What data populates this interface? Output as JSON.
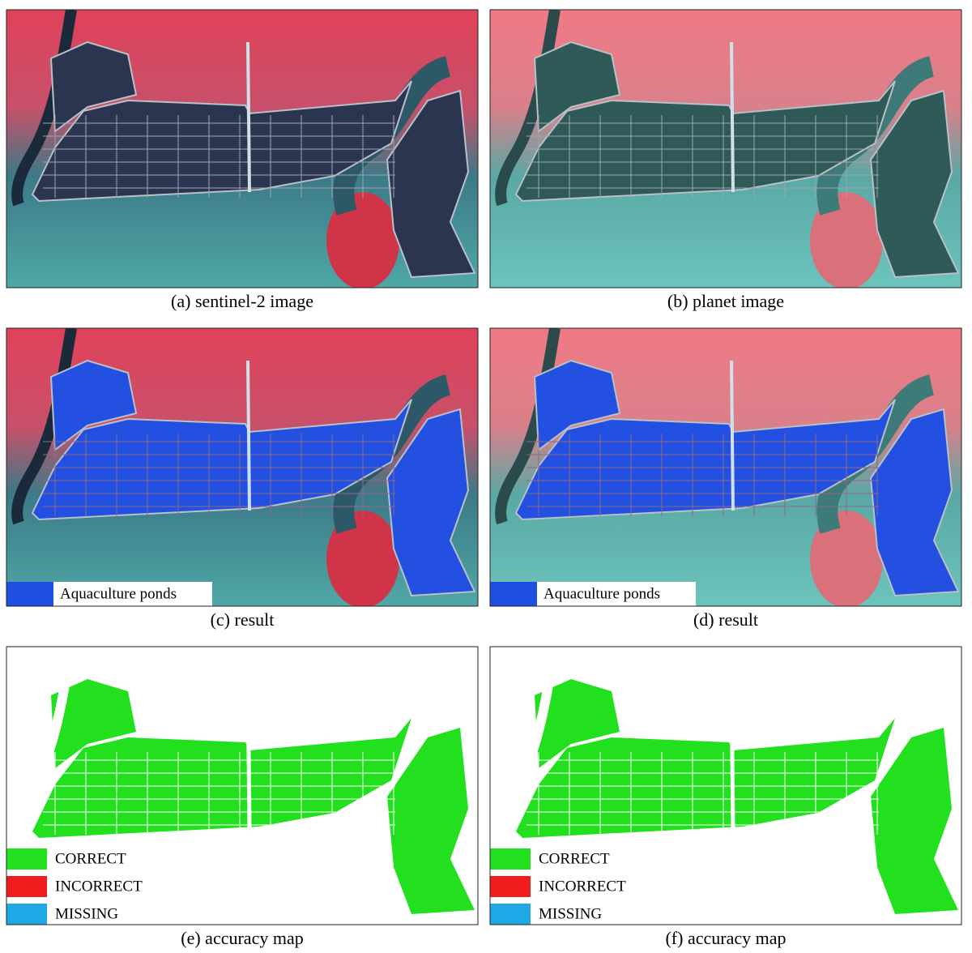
{
  "panels": [
    {
      "caption": "(a) sentinel-2 image"
    },
    {
      "caption": "(b) planet image"
    },
    {
      "caption": "(c) result",
      "legend": [
        {
          "label": "Aquaculture ponds",
          "color": "#1f4fe0"
        }
      ]
    },
    {
      "caption": "(d) result",
      "legend": [
        {
          "label": "Aquaculture ponds",
          "color": "#1f4fe0"
        }
      ]
    },
    {
      "caption": "(e) accuracy map",
      "legend": [
        {
          "label": "CORRECT",
          "color": "#22e01e"
        },
        {
          "label": "INCORRECT",
          "color": "#ee1c1c"
        },
        {
          "label": "MISSING",
          "color": "#1ea9e6"
        }
      ]
    },
    {
      "caption": "(f) accuracy map",
      "legend": [
        {
          "label": "CORRECT",
          "color": "#22e01e"
        },
        {
          "label": "INCORRECT",
          "color": "#ee1c1c"
        },
        {
          "label": "MISSING",
          "color": "#1ea9e6"
        }
      ]
    }
  ]
}
